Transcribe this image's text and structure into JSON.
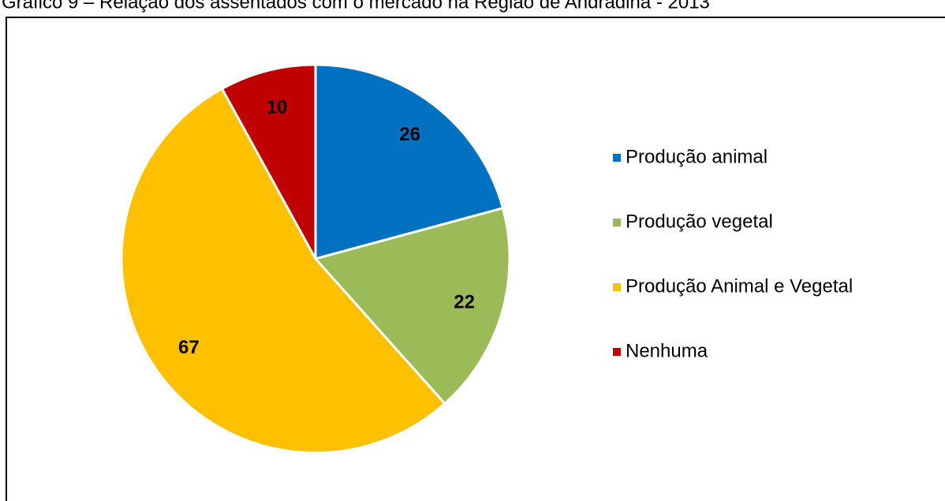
{
  "chart_data": {
    "type": "pie",
    "title": "Gráfico 9 – Relação dos assentados com o mercado na Região de Andradina - 2013",
    "categories": [
      "Produção animal",
      "Produção vegetal",
      "Produção Animal e Vegetal",
      "Nenhuma"
    ],
    "values": [
      26,
      22,
      67,
      10
    ],
    "colors": [
      "#0070c0",
      "#9bbb59",
      "#ffc000",
      "#c00000"
    ],
    "legend": "right"
  }
}
